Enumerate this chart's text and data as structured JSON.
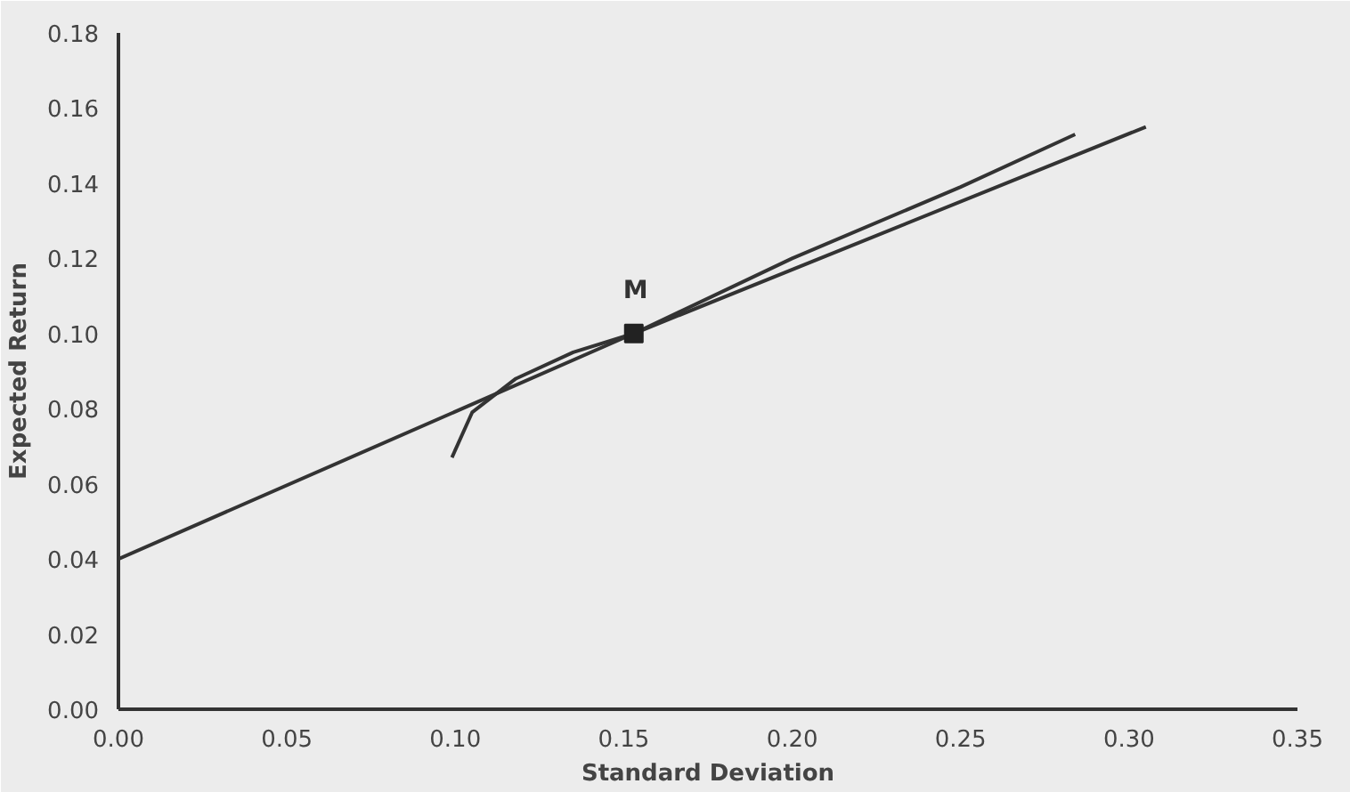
{
  "chart_data": {
    "type": "line",
    "xlabel": "Standard Deviation",
    "ylabel": "Expected Return",
    "xlim": [
      0,
      0.35
    ],
    "ylim": [
      0,
      0.18
    ],
    "xticks": [
      {
        "value": 0,
        "label": "0.00"
      },
      {
        "value": 0.05,
        "label": "0.05"
      },
      {
        "value": 0.1,
        "label": "0.10"
      },
      {
        "value": 0.15,
        "label": "0.15"
      },
      {
        "value": 0.2,
        "label": "0.20"
      },
      {
        "value": 0.25,
        "label": "0.25"
      },
      {
        "value": 0.3,
        "label": "0.30"
      },
      {
        "value": 0.35,
        "label": "0.35"
      }
    ],
    "yticks": [
      {
        "value": 0,
        "label": "0.00"
      },
      {
        "value": 0.02,
        "label": "0.02"
      },
      {
        "value": 0.04,
        "label": "0.04"
      },
      {
        "value": 0.06,
        "label": "0.06"
      },
      {
        "value": 0.08,
        "label": "0.08"
      },
      {
        "value": 0.1,
        "label": "0.10"
      },
      {
        "value": 0.12,
        "label": "0.12"
      },
      {
        "value": 0.14,
        "label": "0.14"
      },
      {
        "value": 0.16,
        "label": "0.16"
      },
      {
        "value": 0.18,
        "label": "0.18"
      }
    ],
    "grid": false,
    "series": [
      {
        "color": "#333333",
        "x": [
          0,
          0.153,
          0.305
        ],
        "values": [
          0.04,
          0.1,
          0.155
        ]
      },
      {
        "color": "#333333",
        "x": [
          0.099,
          0.105,
          0.118,
          0.135,
          0.153,
          0.2,
          0.25,
          0.284
        ],
        "values": [
          0.067,
          0.079,
          0.088,
          0.095,
          0.1,
          0.12,
          0.139,
          0.153
        ]
      },
      {
        "type": "scatter",
        "color": "#222222",
        "marker": "square",
        "x": [
          0.153
        ],
        "values": [
          0.1
        ]
      }
    ],
    "annotations": [
      {
        "text": "M",
        "x": 0.153,
        "y": 0.1
      }
    ]
  }
}
